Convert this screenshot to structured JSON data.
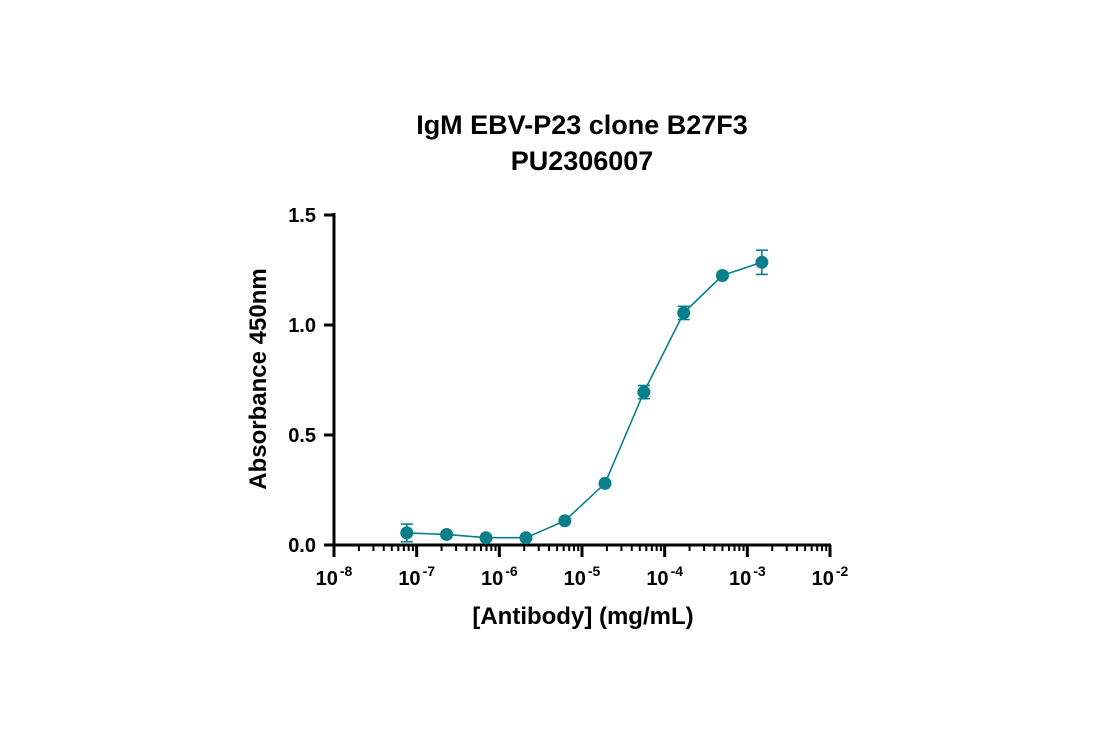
{
  "chart_data": {
    "type": "scatter",
    "title": "IgM EBV-P23 clone B27F3",
    "subtitle": "PU2306007",
    "xlabel": "[Antibody] (mg/mL)",
    "ylabel": "Absorbance 450nm",
    "x_scale": "log10",
    "xlim": [
      1e-08,
      0.01
    ],
    "ylim": [
      0,
      1.5
    ],
    "x_ticks": [
      {
        "base": "10",
        "exp": "-8",
        "value": 1e-08
      },
      {
        "base": "10",
        "exp": "-7",
        "value": 1e-07
      },
      {
        "base": "10",
        "exp": "-6",
        "value": 1e-06
      },
      {
        "base": "10",
        "exp": "-5",
        "value": 1e-05
      },
      {
        "base": "10",
        "exp": "-4",
        "value": 0.0001
      },
      {
        "base": "10",
        "exp": "-3",
        "value": 0.001
      },
      {
        "base": "10",
        "exp": "-2",
        "value": 0.01
      }
    ],
    "y_ticks": [
      {
        "label": "0.0",
        "value": 0.0
      },
      {
        "label": "0.5",
        "value": 0.5
      },
      {
        "label": "1.0",
        "value": 1.0
      },
      {
        "label": "1.5",
        "value": 1.5
      }
    ],
    "grid": false,
    "color": "#0a7f8c",
    "points": [
      {
        "x": 7.6e-08,
        "y": 0.055,
        "err": 0.04
      },
      {
        "x": 2.3e-07,
        "y": 0.048,
        "err": 0.0
      },
      {
        "x": 6.9e-07,
        "y": 0.033,
        "err": 0.0
      },
      {
        "x": 2.1e-06,
        "y": 0.033,
        "err": 0.0
      },
      {
        "x": 6.2e-06,
        "y": 0.11,
        "err": 0.0
      },
      {
        "x": 1.9e-05,
        "y": 0.28,
        "err": 0.0
      },
      {
        "x": 5.6e-05,
        "y": 0.695,
        "err": 0.03
      },
      {
        "x": 0.00017,
        "y": 1.055,
        "err": 0.03
      },
      {
        "x": 0.0005,
        "y": 1.225,
        "err": 0.0
      },
      {
        "x": 0.0015,
        "y": 1.285,
        "err": 0.055
      }
    ]
  }
}
